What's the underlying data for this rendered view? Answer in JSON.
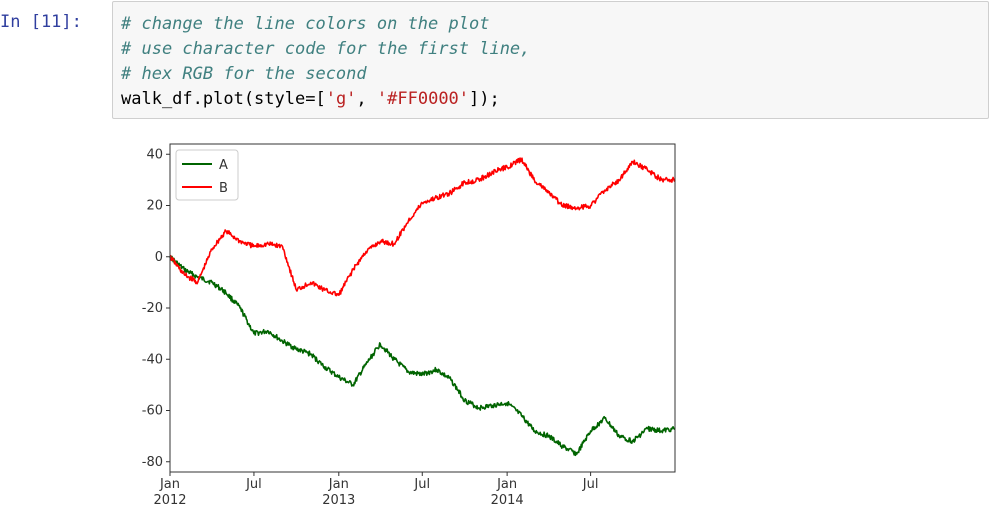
{
  "cell": {
    "prompt": "In [11]:",
    "code_lines": [
      "# change the line colors on the plot",
      "# use character code for the first line,",
      "# hex RGB for the second"
    ],
    "code_call_prefix": "walk_df.plot(style=[",
    "code_arg1": "'g'",
    "code_sep": ", ",
    "code_arg2": "'#FF0000'",
    "code_call_suffix": "]);"
  },
  "chart_data": {
    "type": "line",
    "title": "",
    "xlabel": "",
    "ylabel": "",
    "ylim": [
      -84,
      44
    ],
    "xlim": [
      "2012-01-01",
      "2014-12-31"
    ],
    "yticks": [
      40,
      20,
      0,
      -20,
      -40,
      -60,
      -80
    ],
    "xticks": [
      {
        "date": "2012-01-01",
        "label": "Jan",
        "sublabel": "2012"
      },
      {
        "date": "2012-07-01",
        "label": "Jul",
        "sublabel": ""
      },
      {
        "date": "2013-01-01",
        "label": "Jan",
        "sublabel": "2013"
      },
      {
        "date": "2013-07-01",
        "label": "Jul",
        "sublabel": ""
      },
      {
        "date": "2014-01-01",
        "label": "Jan",
        "sublabel": "2014"
      },
      {
        "date": "2014-07-01",
        "label": "Jul",
        "sublabel": ""
      }
    ],
    "grid": false,
    "legend_position": "top-left",
    "series": [
      {
        "name": "A",
        "color": "#006400",
        "x": [
          "2012-01-01",
          "2012-02-01",
          "2012-03-01",
          "2012-04-01",
          "2012-05-01",
          "2012-06-01",
          "2012-07-01",
          "2012-08-01",
          "2012-09-01",
          "2012-10-01",
          "2012-11-01",
          "2012-12-01",
          "2013-01-01",
          "2013-02-01",
          "2013-03-01",
          "2013-04-01",
          "2013-05-01",
          "2013-06-01",
          "2013-07-01",
          "2013-08-01",
          "2013-09-01",
          "2013-10-01",
          "2013-11-01",
          "2013-12-01",
          "2014-01-01",
          "2014-02-01",
          "2014-03-01",
          "2014-04-01",
          "2014-05-01",
          "2014-06-01",
          "2014-07-01",
          "2014-08-01",
          "2014-09-01",
          "2014-10-01",
          "2014-11-01",
          "2014-12-01",
          "2014-12-31"
        ],
        "values": [
          0,
          -5,
          -8,
          -10,
          -14,
          -20,
          -30,
          -29,
          -33,
          -36,
          -38,
          -43,
          -47,
          -50,
          -42,
          -34,
          -40,
          -45,
          -46,
          -44,
          -48,
          -56,
          -59,
          -58,
          -57,
          -62,
          -68,
          -70,
          -74,
          -77,
          -68,
          -63,
          -70,
          -72,
          -67,
          -68,
          -67
        ]
      },
      {
        "name": "B",
        "color": "#FF0000",
        "x": [
          "2012-01-01",
          "2012-02-01",
          "2012-03-01",
          "2012-04-01",
          "2012-05-01",
          "2012-06-01",
          "2012-07-01",
          "2012-08-01",
          "2012-09-01",
          "2012-10-01",
          "2012-11-01",
          "2012-12-01",
          "2013-01-01",
          "2013-02-01",
          "2013-03-01",
          "2013-04-01",
          "2013-05-01",
          "2013-06-01",
          "2013-07-01",
          "2013-08-01",
          "2013-09-01",
          "2013-10-01",
          "2013-11-01",
          "2013-12-01",
          "2014-01-01",
          "2014-02-01",
          "2014-03-01",
          "2014-04-01",
          "2014-05-01",
          "2014-06-01",
          "2014-07-01",
          "2014-08-01",
          "2014-09-01",
          "2014-10-01",
          "2014-11-01",
          "2014-12-01",
          "2014-12-31"
        ],
        "values": [
          0,
          -7,
          -10,
          3,
          10,
          6,
          4,
          5,
          4,
          -13,
          -10,
          -13,
          -15,
          -5,
          2,
          6,
          5,
          14,
          21,
          23,
          25,
          29,
          30,
          33,
          35,
          38,
          30,
          25,
          20,
          19,
          20,
          26,
          30,
          37,
          34,
          30,
          30
        ]
      }
    ]
  }
}
